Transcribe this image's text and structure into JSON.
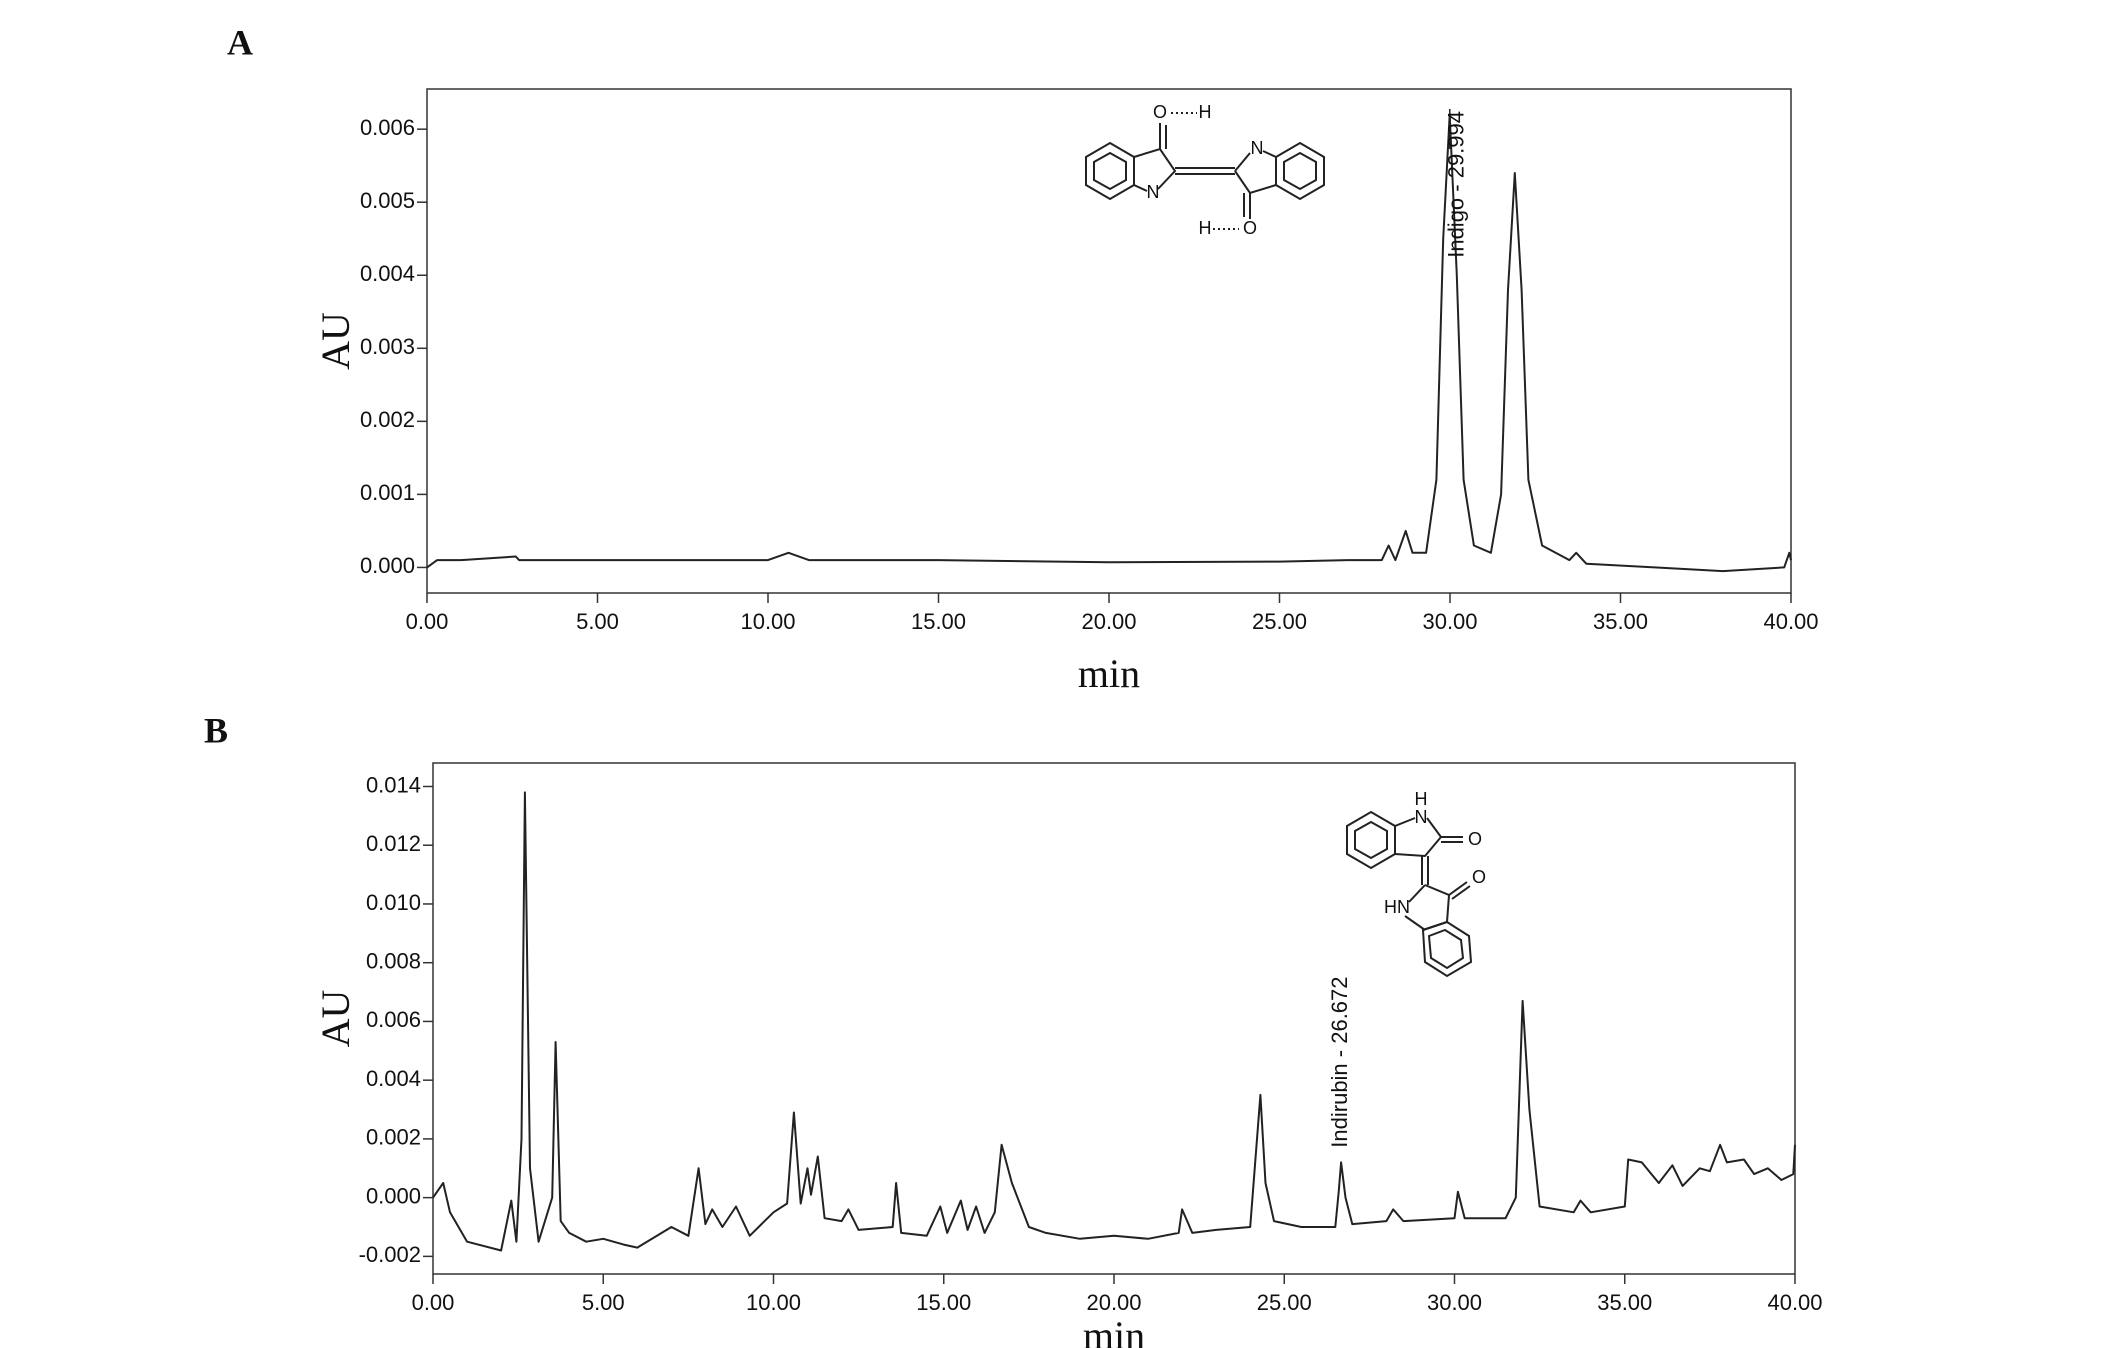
{
  "chart_data": [
    {
      "type": "line",
      "panel": "A",
      "ylabel": "AU",
      "xlabel": "min",
      "color": "#222222",
      "x": [
        0,
        0.3,
        1,
        2.6,
        2.7,
        5,
        10,
        10.6,
        11.2,
        15,
        20,
        25,
        27,
        28.0,
        28.2,
        28.4,
        28.7,
        28.9,
        29.3,
        29.6,
        29.8,
        29.99,
        30.2,
        30.4,
        30.7,
        31.2,
        31.5,
        31.7,
        31.9,
        32.1,
        32.3,
        32.7,
        33.5,
        33.7,
        34,
        36,
        38,
        39.8,
        39.95,
        40
      ],
      "values": [
        0,
        0.0001,
        0.0001,
        0.00015,
        0.0001,
        0.0001,
        0.0001,
        0.0002,
        0.0001,
        0.0001,
        7e-05,
        8e-05,
        0.0001,
        0.0001,
        0.0003,
        0.0001,
        0.0005,
        0.0002,
        0.0002,
        0.0012,
        0.0045,
        0.0062,
        0.004,
        0.0012,
        0.0003,
        0.0002,
        0.001,
        0.0038,
        0.0054,
        0.0038,
        0.0012,
        0.0003,
        0.0001,
        0.0002,
        5e-05,
        0,
        -5e-05,
        0,
        0.0002,
        0.0001
      ],
      "xlim": [
        0,
        40
      ],
      "ylim": [
        -0.00035,
        0.00655
      ],
      "xticks": [
        {
          "value": 0,
          "label": "0.00"
        },
        {
          "value": 5,
          "label": "5.00"
        },
        {
          "value": 10,
          "label": "10.00"
        },
        {
          "value": 15,
          "label": "15.00"
        },
        {
          "value": 20,
          "label": "20.00"
        },
        {
          "value": 25,
          "label": "25.00"
        },
        {
          "value": 30,
          "label": "30.00"
        },
        {
          "value": 35,
          "label": "35.00"
        },
        {
          "value": 40,
          "label": "40.00"
        }
      ],
      "yticks": [
        {
          "value": 0,
          "label": "0.000"
        },
        {
          "value": 0.001,
          "label": "0.001"
        },
        {
          "value": 0.002,
          "label": "0.002"
        },
        {
          "value": 0.003,
          "label": "0.003"
        },
        {
          "value": 0.004,
          "label": "0.004"
        },
        {
          "value": 0.005,
          "label": "0.005"
        },
        {
          "value": 0.006,
          "label": "0.006"
        }
      ],
      "annotation": {
        "text": "Indigo - 29.994",
        "x": 29.994
      },
      "structure_labels": [
        "O",
        "H",
        "N",
        "N",
        "H",
        "O"
      ]
    },
    {
      "type": "line",
      "panel": "B",
      "ylabel": "AU",
      "xlabel": "min",
      "color": "#222222",
      "x": [
        0,
        0.3,
        0.5,
        1,
        2,
        2.3,
        2.45,
        2.6,
        2.7,
        2.85,
        3.1,
        3.5,
        3.6,
        3.75,
        4,
        4.5,
        5,
        5.6,
        6,
        7,
        7.5,
        7.8,
        8.0,
        8.2,
        8.5,
        8.9,
        9.3,
        10,
        10.4,
        10.6,
        10.8,
        11.0,
        11.1,
        11.3,
        11.5,
        12,
        12.2,
        12.5,
        13.5,
        13.6,
        13.75,
        14.5,
        14.9,
        15.1,
        15.5,
        15.7,
        15.95,
        16.2,
        16.5,
        16.7,
        17.0,
        17.5,
        18,
        19,
        20,
        21,
        21.9,
        22.0,
        22.3,
        23,
        24.0,
        24.2,
        24.3,
        24.45,
        24.7,
        25.5,
        26.5,
        26.6,
        26.67,
        26.8,
        27.0,
        28.0,
        28.2,
        28.5,
        30,
        30.1,
        30.3,
        31.5,
        31.8,
        32.0,
        32.2,
        32.5,
        33.5,
        33.7,
        34,
        35,
        35.1,
        35.5,
        36,
        36.4,
        36.7,
        37.2,
        37.5,
        37.8,
        38,
        38.5,
        38.8,
        39.2,
        39.6,
        39.95,
        40
      ],
      "values": [
        0,
        0.0005,
        -0.0005,
        -0.0015,
        -0.0018,
        -0.0001,
        -0.0015,
        0.002,
        0.0138,
        0.001,
        -0.0015,
        0,
        0.0053,
        -0.0008,
        -0.0012,
        -0.0015,
        -0.0014,
        -0.0016,
        -0.0017,
        -0.001,
        -0.0013,
        0.001,
        -0.0009,
        -0.0004,
        -0.001,
        -0.0003,
        -0.0013,
        -0.0005,
        -0.0002,
        0.0029,
        -0.0002,
        0.001,
        0.0001,
        0.0014,
        -0.0007,
        -0.0008,
        -0.0004,
        -0.0011,
        -0.001,
        0.0005,
        -0.0012,
        -0.0013,
        -0.0003,
        -0.0012,
        -0.0001,
        -0.0011,
        -0.0003,
        -0.0012,
        -0.0005,
        0.0018,
        0.0005,
        -0.001,
        -0.0012,
        -0.0014,
        -0.0013,
        -0.0014,
        -0.0012,
        -0.0004,
        -0.0012,
        -0.0011,
        -0.001,
        0.002,
        0.0035,
        0.0005,
        -0.0008,
        -0.001,
        -0.001,
        0.0002,
        0.0012,
        0,
        -0.0009,
        -0.0008,
        -0.0004,
        -0.0008,
        -0.0007,
        0.0002,
        -0.0007,
        -0.0007,
        0,
        0.0067,
        0.003,
        -0.0003,
        -0.0005,
        -0.0001,
        -0.0005,
        -0.0003,
        0.0013,
        0.0012,
        0.0005,
        0.0011,
        0.0004,
        0.001,
        0.0009,
        0.0018,
        0.0012,
        0.0013,
        0.0008,
        0.001,
        0.0006,
        0.0008,
        0.0018
      ],
      "xlim": [
        0,
        40
      ],
      "ylim": [
        -0.0026,
        0.0148
      ],
      "xticks": [
        {
          "value": 0,
          "label": "0.00"
        },
        {
          "value": 5,
          "label": "5.00"
        },
        {
          "value": 10,
          "label": "10.00"
        },
        {
          "value": 15,
          "label": "15.00"
        },
        {
          "value": 20,
          "label": "20.00"
        },
        {
          "value": 25,
          "label": "25.00"
        },
        {
          "value": 30,
          "label": "30.00"
        },
        {
          "value": 35,
          "label": "35.00"
        },
        {
          "value": 40,
          "label": "40.00"
        }
      ],
      "yticks": [
        {
          "value": -0.002,
          "label": "-0.002"
        },
        {
          "value": 0,
          "label": "0.000"
        },
        {
          "value": 0.002,
          "label": "0.002"
        },
        {
          "value": 0.004,
          "label": "0.004"
        },
        {
          "value": 0.006,
          "label": "0.006"
        },
        {
          "value": 0.008,
          "label": "0.008"
        },
        {
          "value": 0.01,
          "label": "0.010"
        },
        {
          "value": 0.012,
          "label": "0.012"
        },
        {
          "value": 0.014,
          "label": "0.014"
        }
      ],
      "annotation": {
        "text": "Indirubin - 26.672",
        "x": 26.672
      },
      "structure_labels": [
        "H",
        "N",
        "O",
        "O",
        "HN"
      ]
    }
  ]
}
